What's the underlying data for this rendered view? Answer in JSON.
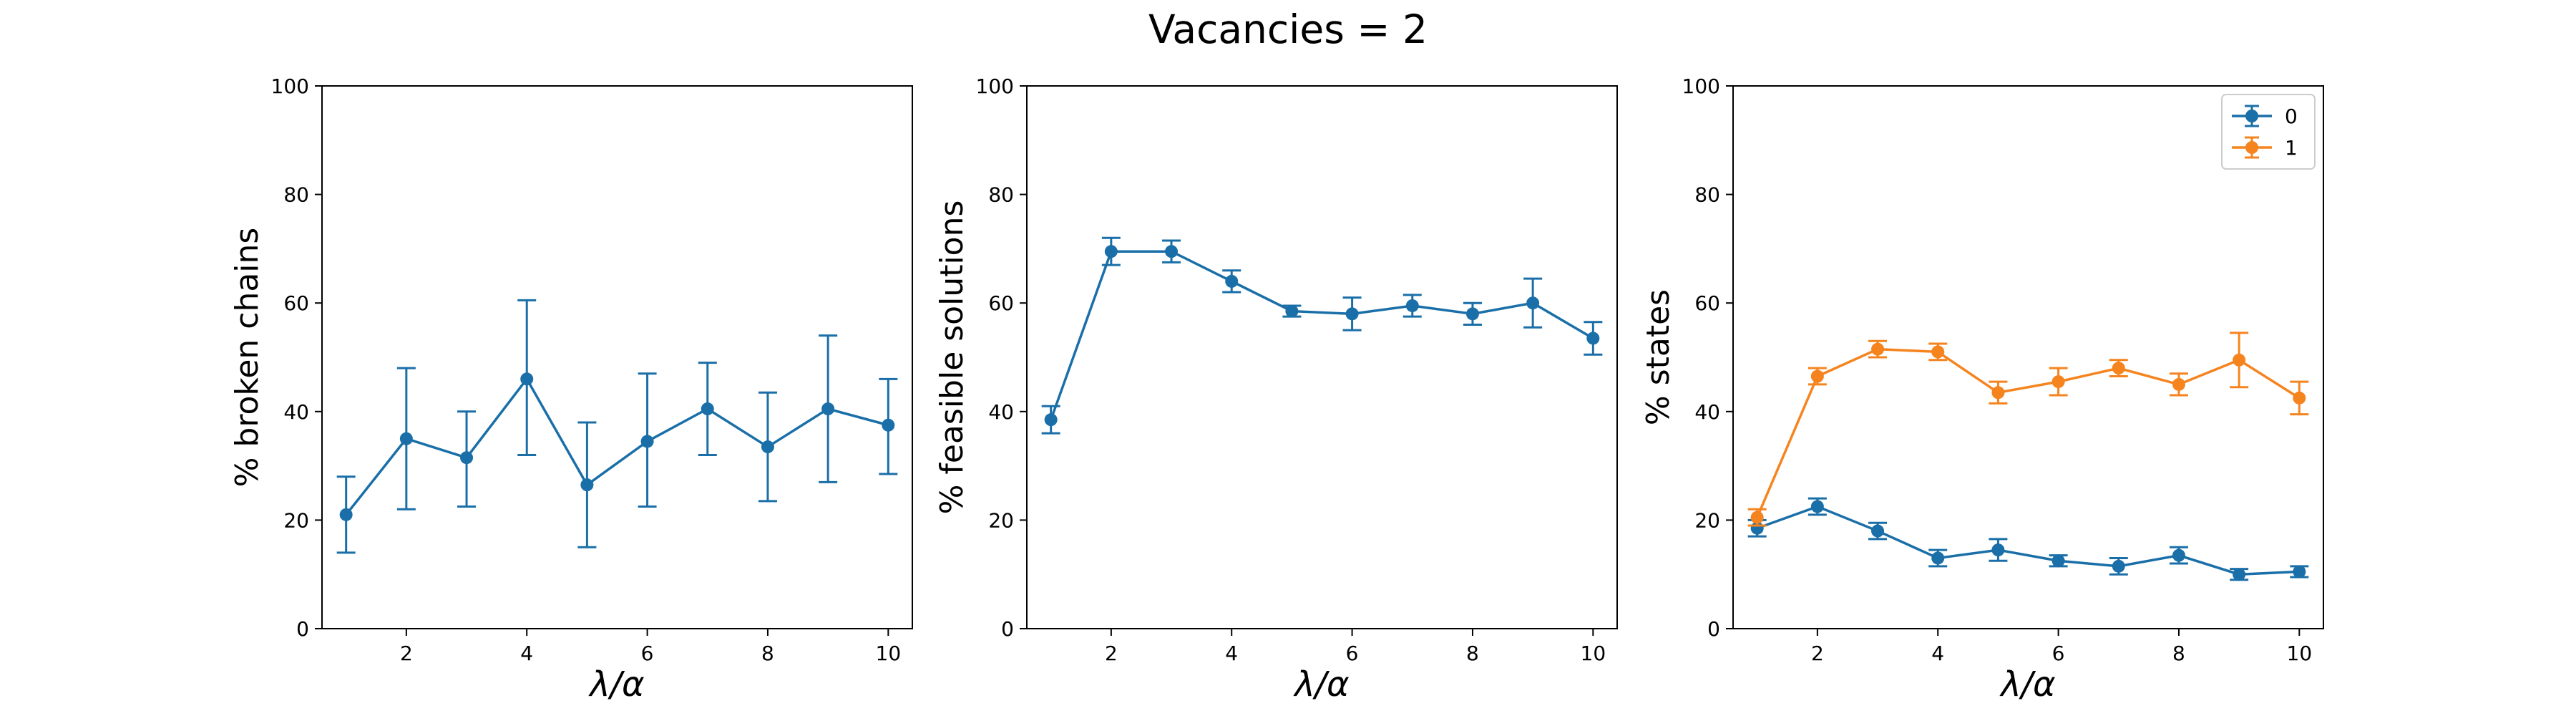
{
  "figure_title": "Vacancies = 2",
  "colors": {
    "series_0": "#1a6fa8",
    "series_1": "#f5841f"
  },
  "chart_data": [
    {
      "type": "line",
      "error_bars": true,
      "xlabel": "λ/α",
      "ylabel": "% broken chains",
      "xlim": [
        0.6,
        10.4
      ],
      "ylim": [
        0,
        100
      ],
      "xticks": [
        2,
        4,
        6,
        8,
        10
      ],
      "yticks": [
        0,
        20,
        40,
        60,
        80,
        100
      ],
      "legend": null,
      "series": [
        {
          "color": "#1a6fa8",
          "x": [
            1,
            2,
            3,
            4,
            5,
            6,
            7,
            8,
            9,
            10
          ],
          "y": [
            21,
            35,
            31.5,
            46,
            26.5,
            34.5,
            40.5,
            33.5,
            40.5,
            37.5
          ],
          "err_low": [
            7,
            13,
            9,
            14,
            11.5,
            12,
            8.5,
            10,
            13.5,
            9
          ],
          "err_high": [
            7,
            13,
            8.5,
            14.5,
            11.5,
            12.5,
            8.5,
            10,
            13.5,
            8.5
          ]
        }
      ]
    },
    {
      "type": "line",
      "error_bars": true,
      "xlabel": "λ/α",
      "ylabel": "% feasible solutions",
      "xlim": [
        0.6,
        10.4
      ],
      "ylim": [
        0,
        100
      ],
      "xticks": [
        2,
        4,
        6,
        8,
        10
      ],
      "yticks": [
        0,
        20,
        40,
        60,
        80,
        100
      ],
      "legend": null,
      "series": [
        {
          "color": "#1a6fa8",
          "x": [
            1,
            2,
            3,
            4,
            5,
            6,
            7,
            8,
            9,
            10
          ],
          "y": [
            38.5,
            69.5,
            69.5,
            64,
            58.5,
            58,
            59.5,
            58,
            60,
            53.5
          ],
          "err_low": [
            2.5,
            2.5,
            2,
            2,
            1,
            3,
            2,
            2,
            4.5,
            3
          ],
          "err_high": [
            2.5,
            2.5,
            2,
            2,
            1,
            3,
            2,
            2,
            4.5,
            3
          ]
        }
      ]
    },
    {
      "type": "line",
      "error_bars": true,
      "xlabel": "λ/α",
      "ylabel": "% states",
      "xlim": [
        0.6,
        10.4
      ],
      "ylim": [
        0,
        100
      ],
      "xticks": [
        2,
        4,
        6,
        8,
        10
      ],
      "yticks": [
        0,
        20,
        40,
        60,
        80,
        100
      ],
      "legend": "top-right",
      "series": [
        {
          "name": "0",
          "color": "#1a6fa8",
          "x": [
            1,
            2,
            3,
            4,
            5,
            6,
            7,
            8,
            9,
            10
          ],
          "y": [
            18.5,
            22.5,
            18,
            13,
            14.5,
            12.5,
            11.5,
            13.5,
            10,
            10.5
          ],
          "err_low": [
            1.5,
            1.5,
            1.5,
            1.5,
            2,
            1,
            1.5,
            1.5,
            1,
            1
          ],
          "err_high": [
            1.5,
            1.5,
            1.5,
            1.5,
            2,
            1,
            1.5,
            1.5,
            1,
            1
          ]
        },
        {
          "name": "1",
          "color": "#f5841f",
          "x": [
            1,
            2,
            3,
            4,
            5,
            6,
            7,
            8,
            9,
            10
          ],
          "y": [
            20.5,
            46.5,
            51.5,
            51,
            43.5,
            45.5,
            48,
            45,
            49.5,
            42.5
          ],
          "err_low": [
            1.5,
            1.5,
            1.5,
            1.5,
            2,
            2.5,
            1.5,
            2,
            5,
            3
          ],
          "err_high": [
            1.5,
            1.5,
            1.5,
            1.5,
            2,
            2.5,
            1.5,
            2,
            5,
            3
          ]
        }
      ]
    }
  ]
}
